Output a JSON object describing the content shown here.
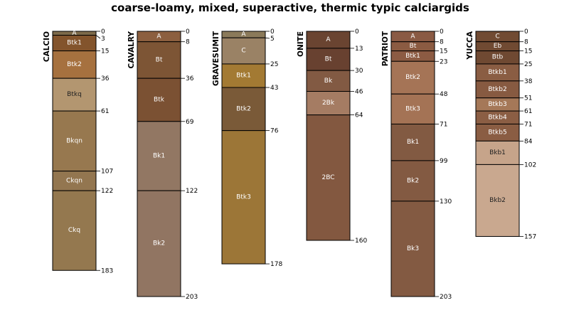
{
  "chart_data": {
    "type": "soil-profile-sketch",
    "title": "coarse-loamy, mixed, superactive, thermic typic calciargids",
    "depth_unit": "cm",
    "max_depth": 203,
    "profiles": [
      {
        "name": "CALCIO",
        "horizons": [
          {
            "name": "A",
            "top": 0,
            "bottom": 3,
            "color": "#7d6a4a",
            "text": "#ffffff"
          },
          {
            "name": "Btk1",
            "top": 3,
            "bottom": 15,
            "color": "#83542c",
            "text": "#ffffff"
          },
          {
            "name": "Btk2",
            "top": 15,
            "bottom": 36,
            "color": "#a6713f",
            "text": "#ffffff"
          },
          {
            "name": "Btkq",
            "top": 36,
            "bottom": 61,
            "color": "#b39670",
            "text": "#222222"
          },
          {
            "name": "Bkqn",
            "top": 61,
            "bottom": 107,
            "color": "#97784f",
            "text": "#ffffff"
          },
          {
            "name": "Ckqn",
            "top": 107,
            "bottom": 122,
            "color": "#937650",
            "text": "#ffffff"
          },
          {
            "name": "Ckq",
            "top": 122,
            "bottom": 183,
            "color": "#94784f",
            "text": "#ffffff"
          }
        ]
      },
      {
        "name": "CAVALRY",
        "horizons": [
          {
            "name": "A",
            "top": 0,
            "bottom": 8,
            "color": "#8c5f3f",
            "text": "#ffffff"
          },
          {
            "name": "Bt",
            "top": 8,
            "bottom": 36,
            "color": "#7d5535",
            "text": "#ffffff"
          },
          {
            "name": "Btk",
            "top": 36,
            "bottom": 69,
            "color": "#7b5133",
            "text": "#ffffff"
          },
          {
            "name": "Bk1",
            "top": 69,
            "bottom": 122,
            "color": "#927763",
            "text": "#ffffff"
          },
          {
            "name": "Bk2",
            "top": 122,
            "bottom": 203,
            "color": "#917562",
            "text": "#ffffff"
          }
        ]
      },
      {
        "name": "GRAVESUMIT",
        "horizons": [
          {
            "name": "A",
            "top": 0,
            "bottom": 5,
            "color": "#8b7a5a",
            "text": "#ffffff"
          },
          {
            "name": "C",
            "top": 5,
            "bottom": 25,
            "color": "#9a8265",
            "text": "#ffffff"
          },
          {
            "name": "Btk1",
            "top": 25,
            "bottom": 43,
            "color": "#a37a33",
            "text": "#ffffff"
          },
          {
            "name": "Btk2",
            "top": 43,
            "bottom": 76,
            "color": "#7a5a38",
            "text": "#ffffff"
          },
          {
            "name": "Btk3",
            "top": 76,
            "bottom": 178,
            "color": "#9c7637",
            "text": "#ffffff"
          }
        ]
      },
      {
        "name": "ONITE",
        "horizons": [
          {
            "name": "A",
            "top": 0,
            "bottom": 13,
            "color": "#6a4431",
            "text": "#ffffff"
          },
          {
            "name": "Bt",
            "top": 13,
            "bottom": 30,
            "color": "#684130",
            "text": "#ffffff"
          },
          {
            "name": "Bk",
            "top": 30,
            "bottom": 46,
            "color": "#825a43",
            "text": "#ffffff"
          },
          {
            "name": "2Bk",
            "top": 46,
            "bottom": 64,
            "color": "#a57c63",
            "text": "#ffffff"
          },
          {
            "name": "2BC",
            "top": 64,
            "bottom": 160,
            "color": "#835840",
            "text": "#ffffff"
          }
        ]
      },
      {
        "name": "PATRIOT",
        "horizons": [
          {
            "name": "A",
            "top": 0,
            "bottom": 8,
            "color": "#8a5a44",
            "text": "#ffffff"
          },
          {
            "name": "Bt",
            "top": 8,
            "bottom": 15,
            "color": "#8b5b42",
            "text": "#ffffff"
          },
          {
            "name": "Btk1",
            "top": 15,
            "bottom": 23,
            "color": "#8c5b43",
            "text": "#ffffff"
          },
          {
            "name": "Btk2",
            "top": 23,
            "bottom": 48,
            "color": "#a57456",
            "text": "#ffffff"
          },
          {
            "name": "Btk3",
            "top": 48,
            "bottom": 71,
            "color": "#a47355",
            "text": "#ffffff"
          },
          {
            "name": "Bk1",
            "top": 71,
            "bottom": 99,
            "color": "#825a42",
            "text": "#ffffff"
          },
          {
            "name": "Bk2",
            "top": 99,
            "bottom": 130,
            "color": "#835a42",
            "text": "#ffffff"
          },
          {
            "name": "Bk3",
            "top": 130,
            "bottom": 203,
            "color": "#835a42",
            "text": "#ffffff"
          }
        ]
      },
      {
        "name": "YUCCA",
        "horizons": [
          {
            "name": "C",
            "top": 0,
            "bottom": 8,
            "color": "#714b33",
            "text": "#ffffff"
          },
          {
            "name": "Eb",
            "top": 8,
            "bottom": 15,
            "color": "#704a32",
            "text": "#ffffff"
          },
          {
            "name": "Btb",
            "top": 15,
            "bottom": 25,
            "color": "#6f4932",
            "text": "#ffffff"
          },
          {
            "name": "Btkb1",
            "top": 25,
            "bottom": 38,
            "color": "#8a5d43",
            "text": "#ffffff"
          },
          {
            "name": "Btkb2",
            "top": 38,
            "bottom": 51,
            "color": "#875a41",
            "text": "#ffffff"
          },
          {
            "name": "Btkb3",
            "top": 51,
            "bottom": 61,
            "color": "#a57858",
            "text": "#ffffff"
          },
          {
            "name": "Btkb4",
            "top": 61,
            "bottom": 71,
            "color": "#8b5e44",
            "text": "#ffffff"
          },
          {
            "name": "Btkb5",
            "top": 71,
            "bottom": 84,
            "color": "#8a5d43",
            "text": "#ffffff"
          },
          {
            "name": "Bkb1",
            "top": 84,
            "bottom": 102,
            "color": "#c6a48a",
            "text": "#222222"
          },
          {
            "name": "Bkb2",
            "top": 102,
            "bottom": 157,
            "color": "#c9a88f",
            "text": "#222222"
          }
        ]
      }
    ]
  }
}
